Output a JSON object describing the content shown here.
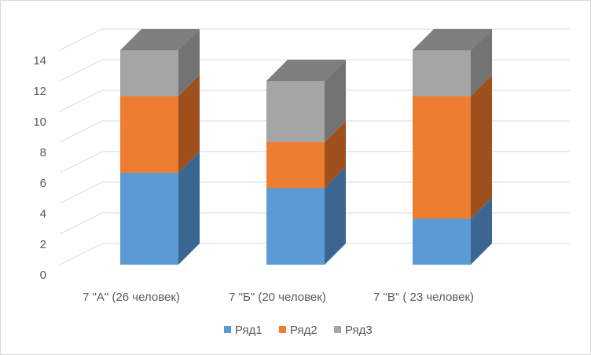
{
  "chart_data": {
    "type": "bar",
    "stacked": true,
    "three_d": true,
    "categories": [
      "7 \"А\" (26 человек)",
      "7 \"Б\" (20 человек)",
      "7 \"В\" ( 23 человек)"
    ],
    "series": [
      {
        "name": "Ряд1",
        "values": [
          6,
          5,
          3
        ],
        "color": "#5B9BD5",
        "side_color": "#3A6691"
      },
      {
        "name": "Ряд2",
        "values": [
          5,
          3,
          8
        ],
        "color": "#ED7D31",
        "side_color": "#9E4F1C"
      },
      {
        "name": "Ряд3",
        "values": [
          3,
          4,
          3
        ],
        "color": "#A5A5A5",
        "side_color": "#737373"
      }
    ],
    "y_ticks": [
      "0",
      "2",
      "4",
      "6",
      "8",
      "10",
      "12",
      "14"
    ],
    "ylim": [
      0,
      14
    ],
    "grid": true,
    "legend_position": "bottom",
    "title": "",
    "xlabel": "",
    "ylabel": ""
  }
}
